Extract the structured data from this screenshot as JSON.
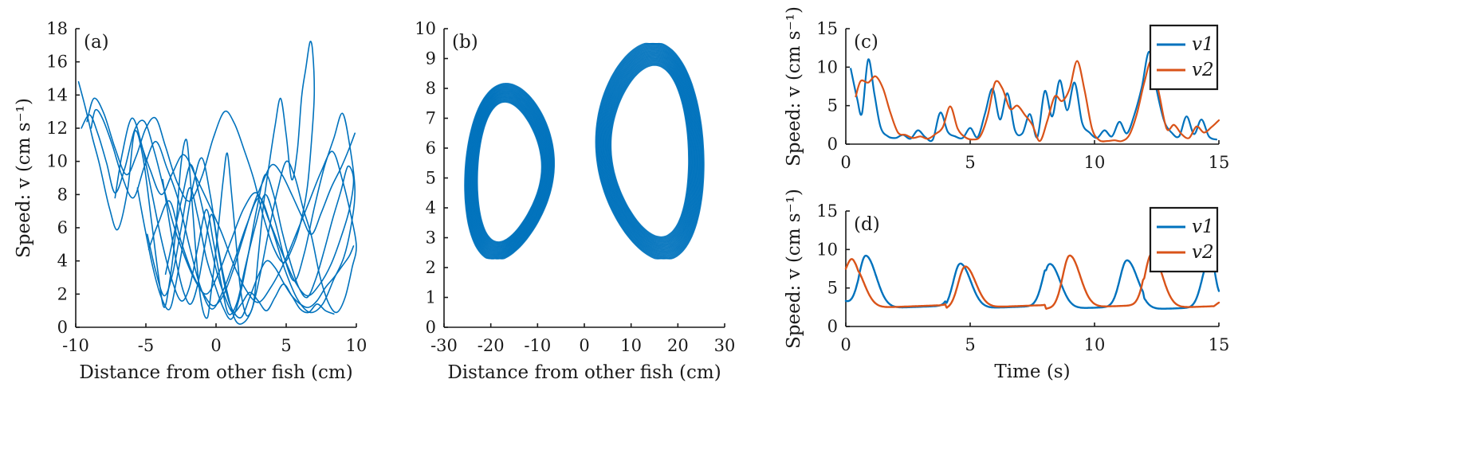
{
  "colors": {
    "v1": "#0072BD",
    "v2": "#D95319"
  },
  "chart_data": [
    {
      "id": "a",
      "type": "line",
      "panel_label": "(a)",
      "xlabel": "Distance from other fish (cm)",
      "ylabel": "Speed: v (cm s⁻¹)",
      "xlim": [
        -10,
        10
      ],
      "ylim": [
        0,
        18
      ],
      "xticks": [
        -10,
        -5,
        0,
        5,
        10
      ],
      "yticks": [
        0,
        2,
        4,
        6,
        8,
        10,
        12,
        14,
        16,
        18
      ],
      "series": [
        {
          "x": [
            -9.8,
            -9.3,
            -8.8,
            -8.3,
            -7.6,
            -7.0,
            -6.3,
            -5.8,
            -5.2,
            -4.6,
            -4.1,
            -3.7,
            -3.3,
            -2.9,
            -2.5,
            -2.1,
            -1.8,
            -1.5,
            -1.2,
            -0.9,
            -0.6,
            -0.4,
            -0.1,
            0.2,
            0.5,
            0.8,
            1.1,
            1.4,
            1.7,
            2.0,
            2.3,
            2.7,
            3.0,
            3.4,
            3.8,
            4.2,
            4.6,
            5.0,
            5.4,
            5.8,
            6.1,
            6.4,
            6.7,
            6.9,
            7.0,
            6.8,
            6.5,
            6.0,
            5.4,
            4.8,
            4.1,
            3.4,
            2.7,
            2.0,
            1.3,
            0.6,
            -0.2,
            -1.0,
            -1.9,
            -2.8,
            -3.6,
            -4.3,
            -5.0,
            -5.7,
            -6.4,
            -7.2,
            -8.0,
            -8.7,
            -9.2
          ],
          "y": [
            14.8,
            13.2,
            11.4,
            9.8,
            7.2,
            5.9,
            8.3,
            11.8,
            10.2,
            6.4,
            3.1,
            1.2,
            2.8,
            5.6,
            9.8,
            11.3,
            8.6,
            5.2,
            2.4,
            0.9,
            0.6,
            1.8,
            3.9,
            6.3,
            8.8,
            10.5,
            8.1,
            5.4,
            2.6,
            1.1,
            0.7,
            1.6,
            4.2,
            7.5,
            9.9,
            12.1,
            13.8,
            11.6,
            8.9,
            10.7,
            13.9,
            15.6,
            17.2,
            16.5,
            14.0,
            11.2,
            8.4,
            6.2,
            4.7,
            3.9,
            4.8,
            6.6,
            8.9,
            10.7,
            12.3,
            13.0,
            11.4,
            9.1,
            7.6,
            8.8,
            10.9,
            12.6,
            12.0,
            10.3,
            9.2,
            10.8,
            12.9,
            13.8,
            12.4
          ]
        },
        {
          "x": [
            -7.2,
            -6.7,
            -6.0,
            -5.3,
            -4.6,
            -3.9,
            -3.2,
            -2.5,
            -1.9,
            -1.3,
            -0.7,
            -0.2,
            0.4,
            0.9,
            1.5,
            2.1,
            2.8,
            3.5,
            4.2,
            4.9,
            5.6,
            6.3,
            7.0,
            7.7,
            8.4,
            9.0,
            9.5,
            9.9,
            9.6,
            9.1,
            8.4,
            7.6,
            6.7,
            5.8,
            4.9,
            4.0,
            3.1,
            2.2,
            1.3,
            0.5,
            -0.3,
            -1.1,
            -1.9,
            -2.7,
            -3.5,
            -4.3,
            -5.1,
            -5.9,
            -6.7,
            -7.4,
            -8.1,
            -8.6,
            -8.9
          ],
          "y": [
            7.8,
            10.4,
            12.6,
            11.0,
            8.2,
            5.3,
            3.0,
            1.6,
            2.4,
            4.8,
            7.1,
            5.2,
            2.5,
            0.8,
            1.5,
            3.7,
            6.1,
            8.0,
            6.4,
            4.1,
            2.8,
            4.5,
            7.2,
            9.6,
            11.4,
            12.9,
            11.1,
            8.3,
            6.0,
            4.2,
            2.9,
            1.4,
            0.9,
            1.7,
            3.5,
            5.9,
            7.8,
            6.2,
            4.0,
            2.2,
            1.1,
            2.4,
            4.9,
            7.7,
            9.6,
            11.2,
            9.7,
            7.8,
            9.1,
            11.0,
            12.6,
            13.1,
            12.0
          ]
        },
        {
          "x": [
            -5.6,
            -5.1,
            -4.5,
            -3.9,
            -3.3,
            -2.8,
            -2.2,
            -1.6,
            -1.0,
            -0.4,
            0.2,
            0.8,
            1.4,
            2.0,
            2.6,
            3.2,
            3.8,
            4.4,
            5.0,
            5.6,
            6.2,
            6.8,
            7.4,
            8.0,
            8.6,
            9.2,
            9.7,
            10.0,
            9.6,
            9.0,
            8.3,
            7.5,
            6.6,
            5.7,
            4.8,
            3.9,
            3.0,
            2.1,
            1.2,
            0.4,
            -0.5,
            -1.4,
            -2.3,
            -3.1,
            -3.9,
            -4.7,
            -5.4
          ],
          "y": [
            8.4,
            6.1,
            3.6,
            1.8,
            1.1,
            2.9,
            5.8,
            8.7,
            10.2,
            7.9,
            4.6,
            2.1,
            0.4,
            0.3,
            1.2,
            3.4,
            6.0,
            8.3,
            10.0,
            9.1,
            7.2,
            5.5,
            3.1,
            1.5,
            0.9,
            1.8,
            3.6,
            4.9,
            6.8,
            8.9,
            10.6,
            9.4,
            7.5,
            5.6,
            3.8,
            2.4,
            1.5,
            2.3,
            3.9,
            5.7,
            7.4,
            9.0,
            10.4,
            9.3,
            8.0,
            9.5,
            11.2
          ]
        },
        {
          "x": [
            -4.9,
            -4.3,
            -3.7,
            -3.1,
            -2.5,
            -1.9,
            -1.3,
            -0.7,
            -0.1,
            0.5,
            1.1,
            1.7,
            2.3,
            2.9,
            3.5,
            4.1,
            4.7,
            5.3,
            5.9,
            6.5,
            7.1,
            7.7,
            8.3,
            8.9,
            9.4,
            9.8,
            9.5,
            8.9,
            8.2,
            7.4,
            6.5,
            5.6,
            4.7,
            3.8,
            2.9,
            2.0,
            1.1,
            0.2,
            -0.7,
            -1.6,
            -2.5,
            -3.3,
            -4.1,
            -4.8
          ],
          "y": [
            5.6,
            3.4,
            1.9,
            3.2,
            5.9,
            8.4,
            6.7,
            4.2,
            2.6,
            1.2,
            0.5,
            1.9,
            4.4,
            7.1,
            9.2,
            8.0,
            5.8,
            3.9,
            2.4,
            1.8,
            2.9,
            4.6,
            6.5,
            8.2,
            9.7,
            8.9,
            7.1,
            5.4,
            3.8,
            2.6,
            1.9,
            2.8,
            4.5,
            6.4,
            8.1,
            7.2,
            5.3,
            3.3,
            2.0,
            3.1,
            5.2,
            7.6,
            6.3,
            4.7
          ]
        },
        {
          "x": [
            -3.8,
            -3.3,
            -2.8,
            -2.3,
            -1.8,
            -1.3,
            -0.8,
            -0.3,
            0.2,
            0.7,
            1.2,
            1.8,
            2.4,
            3.0,
            3.6,
            4.2,
            4.8,
            5.4,
            6.0,
            6.6,
            7.2,
            7.8,
            8.4,
            9.0,
            9.5,
            9.8
          ],
          "y": [
            8.9,
            6.2,
            3.8,
            2.1,
            1.4,
            2.6,
            4.9,
            6.8,
            4.4,
            2.2,
            1.0,
            0.6,
            1.8,
            3.1,
            4.0,
            3.6,
            2.7,
            1.9,
            1.4,
            1.2,
            1.6,
            2.4,
            3.0,
            3.7,
            4.3,
            4.9
          ]
        },
        {
          "x": [
            -3.6,
            -3.0,
            -2.4,
            -1.8,
            -1.2,
            -0.6,
            0.0,
            0.6,
            1.2,
            1.8,
            2.4,
            3.0,
            3.6,
            4.2,
            4.8,
            5.4,
            6.0,
            6.6,
            7.2,
            7.8,
            8.4
          ],
          "y": [
            3.2,
            5.6,
            7.9,
            9.8,
            8.0,
            5.8,
            3.5,
            1.9,
            0.9,
            1.4,
            2.1,
            1.6,
            1.0,
            1.8,
            2.6,
            1.9,
            1.1,
            0.9,
            1.4,
            1.0,
            0.8
          ]
        },
        {
          "x": [
            -9.6,
            -9.0,
            -8.4,
            -7.8,
            -7.2,
            -6.5,
            -5.8,
            -5.1,
            -4.4,
            -3.7,
            -3.0,
            -2.3,
            -1.6,
            -0.9,
            -0.2,
            0.5,
            1.2,
            1.9,
            2.6,
            3.3,
            4.0,
            4.7,
            5.4,
            6.1,
            6.8,
            7.5,
            8.2,
            8.9,
            9.5,
            9.9
          ],
          "y": [
            12.0,
            12.8,
            11.6,
            9.9,
            8.1,
            9.6,
            11.9,
            12.4,
            10.6,
            8.3,
            6.1,
            4.4,
            3.0,
            2.0,
            1.3,
            1.9,
            3.4,
            5.3,
            7.2,
            8.7,
            9.8,
            9.2,
            8.0,
            6.7,
            5.6,
            6.9,
            8.4,
            9.6,
            10.8,
            11.7
          ]
        }
      ]
    },
    {
      "id": "b",
      "type": "line",
      "panel_label": "(b)",
      "xlabel": "Distance from other fish (cm)",
      "ylabel": "",
      "xlim": [
        -30,
        30
      ],
      "ylim": [
        0,
        10
      ],
      "xticks": [
        -30,
        -20,
        -10,
        0,
        10,
        20,
        30
      ],
      "yticks": [
        0,
        1,
        2,
        3,
        4,
        5,
        6,
        7,
        8,
        9,
        10
      ],
      "attractor": {
        "lobes": [
          {
            "cx": -16,
            "cy": 5.2,
            "rx": 9.5,
            "ry": 2.9,
            "peak_x": -11,
            "peak_y": 8.3
          },
          {
            "cx": 14,
            "cy": 5.9,
            "rx": 11.5,
            "ry": 3.6,
            "peak_x": 14,
            "peak_y": 9.5
          }
        ],
        "x_range": [
          -26,
          26
        ],
        "y_range": [
          2.3,
          9.5
        ]
      }
    },
    {
      "id": "c",
      "type": "line",
      "panel_label": "(c)",
      "xlabel": "",
      "ylabel": "Speed: v (cm s⁻¹)",
      "xlim": [
        0,
        15
      ],
      "ylim": [
        0,
        15
      ],
      "xticks": [
        0,
        5,
        10,
        15
      ],
      "yticks": [
        0,
        5,
        10,
        15
      ],
      "legend": {
        "position": "top-right",
        "entries": [
          "v1",
          "v2"
        ]
      },
      "series": [
        {
          "name": "v1",
          "x": [
            0.2,
            0.45,
            0.65,
            0.9,
            1.15,
            1.4,
            1.7,
            2.0,
            2.3,
            2.6,
            2.9,
            3.2,
            3.5,
            3.8,
            4.1,
            4.4,
            4.7,
            5.0,
            5.3,
            5.6,
            5.9,
            6.2,
            6.5,
            6.8,
            7.1,
            7.4,
            7.7,
            8.0,
            8.3,
            8.6,
            8.9,
            9.2,
            9.5,
            9.8,
            10.1,
            10.4,
            10.7,
            11.0,
            11.3,
            11.6,
            11.9,
            12.2,
            12.5,
            12.8,
            13.1,
            13.4,
            13.7,
            14.0,
            14.3,
            14.6,
            14.9
          ],
          "y": [
            9.8,
            6.0,
            4.0,
            11.0,
            6.5,
            2.2,
            1.0,
            0.8,
            1.2,
            0.7,
            1.8,
            0.9,
            0.6,
            4.1,
            1.6,
            1.0,
            0.8,
            2.1,
            0.9,
            4.0,
            7.2,
            3.2,
            6.6,
            1.8,
            1.4,
            3.9,
            0.9,
            6.9,
            3.6,
            8.3,
            4.4,
            8.0,
            2.8,
            1.5,
            0.8,
            1.8,
            1.0,
            2.9,
            1.4,
            3.8,
            7.4,
            12.0,
            7.0,
            3.0,
            1.5,
            1.0,
            3.6,
            1.3,
            3.2,
            1.0,
            0.6
          ]
        },
        {
          "name": "v2",
          "x": [
            0.4,
            0.6,
            0.9,
            1.2,
            1.5,
            1.8,
            2.1,
            2.4,
            2.7,
            3.0,
            3.3,
            3.6,
            3.9,
            4.2,
            4.5,
            4.8,
            5.1,
            5.4,
            5.7,
            6.0,
            6.3,
            6.6,
            6.9,
            7.2,
            7.5,
            7.8,
            8.1,
            8.4,
            8.7,
            9.0,
            9.3,
            9.6,
            9.9,
            10.2,
            10.5,
            10.8,
            11.1,
            11.4,
            11.7,
            12.0,
            12.3,
            12.6,
            12.9,
            13.2,
            13.5,
            13.8,
            14.1,
            14.4,
            14.7,
            15.0
          ],
          "y": [
            6.2,
            8.2,
            8.0,
            8.8,
            7.2,
            4.0,
            1.5,
            1.2,
            0.8,
            1.0,
            0.7,
            1.3,
            2.2,
            4.9,
            2.0,
            0.9,
            0.6,
            1.0,
            3.6,
            8.0,
            7.2,
            4.6,
            5.0,
            3.8,
            2.5,
            0.4,
            3.0,
            6.2,
            5.6,
            7.2,
            10.8,
            7.0,
            2.0,
            0.5,
            0.4,
            0.5,
            0.4,
            1.2,
            3.9,
            8.0,
            10.8,
            6.5,
            2.0,
            2.5,
            1.3,
            0.8,
            2.3,
            1.5,
            2.2,
            3.1
          ]
        }
      ]
    },
    {
      "id": "d",
      "type": "line",
      "panel_label": "(d)",
      "xlabel": "Time (s)",
      "ylabel": "Speed: v (cm s⁻¹)",
      "xlim": [
        0,
        15
      ],
      "ylim": [
        0,
        15
      ],
      "xticks": [
        0,
        5,
        10,
        15
      ],
      "yticks": [
        0,
        5,
        10,
        15
      ],
      "legend": {
        "position": "top-right",
        "entries": [
          "v1",
          "v2"
        ]
      },
      "series": [
        {
          "name": "v1",
          "base": 2.2,
          "start": 3.2,
          "end": 4.6,
          "peaks": [
            {
              "t": 0.8,
              "h": 9.1
            },
            {
              "t": 4.6,
              "h": 8.1
            },
            {
              "t": 8.2,
              "h": 8.1
            },
            {
              "t": 11.3,
              "h": 8.2
            },
            {
              "t": 14.6,
              "h": 8.2
            }
          ]
        },
        {
          "name": "v2",
          "base": 2.3,
          "start": 4.4,
          "end": 3.1,
          "peaks": [
            {
              "t": 0.3,
              "h": 7.8
            },
            {
              "t": 4.8,
              "h": 7.7
            },
            {
              "t": 9.0,
              "h": 9.1
            },
            {
              "t": 12.3,
              "h": 9.4
            }
          ]
        }
      ]
    }
  ]
}
